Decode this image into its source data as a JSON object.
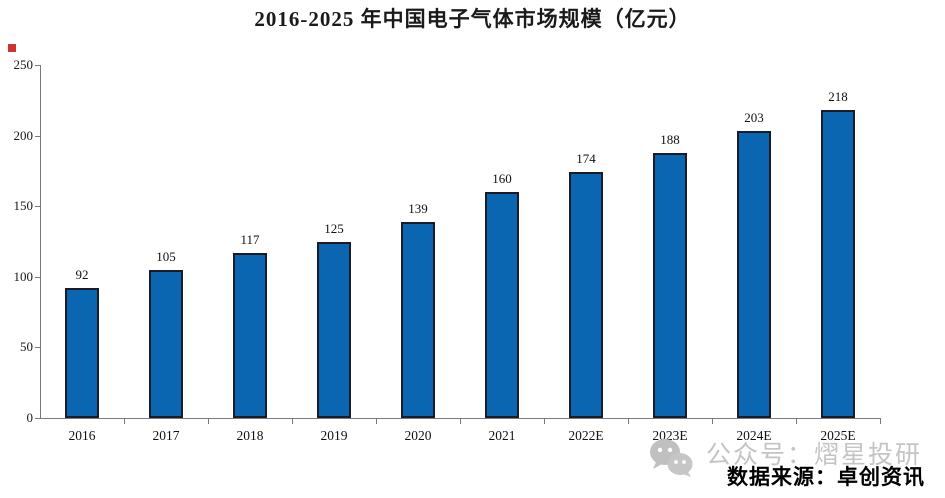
{
  "title": "2016-2025 年中国电子气体市场规模（亿元）",
  "source_note": "数据来源：卓创资讯",
  "watermark": {
    "icon": "wechat-icon",
    "text": "公众号：熠星投研"
  },
  "colors": {
    "bar_fill": "#0a66b1",
    "bar_border": "#1b1b26",
    "axis": "#7a7a7a",
    "watermark_gray": "#c4c4c4",
    "red_marker": "#d03030"
  },
  "chart_data": {
    "type": "bar",
    "title": "2016-2025 年中国电子气体市场规模（亿元）",
    "categories": [
      "2016",
      "2017",
      "2018",
      "2019",
      "2020",
      "2021",
      "2022E",
      "2023E",
      "2024E",
      "2025E"
    ],
    "values": [
      92,
      105,
      117,
      125,
      139,
      160,
      174,
      188,
      203,
      218
    ],
    "xlabel": "",
    "ylabel": "",
    "ylim": [
      0,
      250
    ],
    "yticks": [
      0,
      50,
      100,
      150,
      200,
      250
    ],
    "grid": false,
    "legend": "none",
    "bar_labels": true
  }
}
